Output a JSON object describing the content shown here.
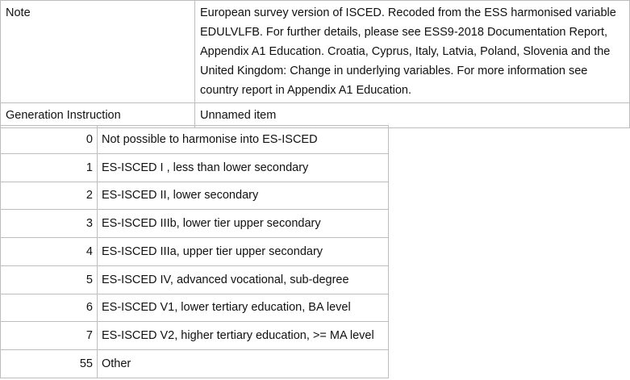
{
  "meta": {
    "note_label": "Note",
    "note_text": "European survey version of ISCED. Recoded from the ESS harmonised variable EDULVLFB. For further details, please see ESS9-2018 Documentation Report, Appendix A1 Education. Croatia, Cyprus, Italy, Latvia, Poland, Slovenia and the United Kingdom: Change in underlying variables. For more information see country report in Appendix A1 Education.",
    "generation_label": "Generation Instruction",
    "generation_value": "Unnamed item"
  },
  "codes": [
    {
      "code": "0",
      "label": "Not possible to harmonise into ES-ISCED"
    },
    {
      "code": "1",
      "label": "ES-ISCED I , less than lower secondary"
    },
    {
      "code": "2",
      "label": "ES-ISCED II, lower secondary"
    },
    {
      "code": "3",
      "label": "ES-ISCED IIIb, lower tier upper secondary"
    },
    {
      "code": "4",
      "label": "ES-ISCED IIIa, upper tier upper secondary"
    },
    {
      "code": "5",
      "label": "ES-ISCED IV, advanced vocational, sub-degree"
    },
    {
      "code": "6",
      "label": "ES-ISCED V1, lower tertiary education, BA level"
    },
    {
      "code": "7",
      "label": "ES-ISCED V2, higher tertiary education, >= MA level"
    },
    {
      "code": "55",
      "label": "Other"
    }
  ]
}
